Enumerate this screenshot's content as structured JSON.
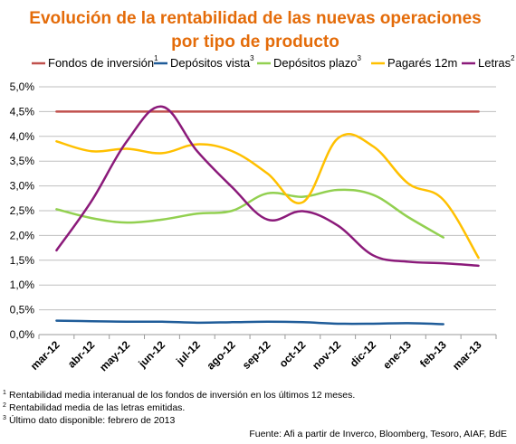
{
  "chart_data": {
    "type": "line",
    "title_line1": "Evolución de la rentabilidad de las nuevas operaciones",
    "title_line2": "por tipo de producto",
    "categories": [
      "mar-12",
      "abr-12",
      "may-12",
      "jun-12",
      "jul-12",
      "ago-12",
      "sep-12",
      "oct-12",
      "nov-12",
      "dic-12",
      "ene-13",
      "feb-13",
      "mar-13"
    ],
    "y_ticks": [
      "0,0%",
      "0,5%",
      "1,0%",
      "1,5%",
      "2,0%",
      "2,5%",
      "3,0%",
      "3,5%",
      "4,0%",
      "4,5%",
      "5,0%"
    ],
    "ylim": [
      0,
      5
    ],
    "grid": "horizontal",
    "legend_position": "top",
    "series": [
      {
        "name": "Fondos de inversión",
        "sup": "1",
        "color": "#C0504D",
        "values": [
          4.5,
          4.5,
          4.5,
          4.5,
          4.5,
          4.5,
          4.5,
          4.5,
          4.5,
          4.5,
          4.5,
          4.5,
          4.5
        ]
      },
      {
        "name": "Depósitos vista",
        "sup": "3",
        "color": "#1F5C99",
        "values": [
          0.28,
          0.27,
          0.26,
          0.26,
          0.24,
          0.25,
          0.26,
          0.25,
          0.22,
          0.22,
          0.23,
          0.21,
          null
        ]
      },
      {
        "name": "Depósitos plazo",
        "sup": "3",
        "color": "#92D050",
        "values": [
          2.53,
          2.35,
          2.26,
          2.32,
          2.44,
          2.5,
          2.85,
          2.78,
          2.92,
          2.82,
          2.37,
          1.96,
          null
        ]
      },
      {
        "name": "Pagarés 12m",
        "sup": "",
        "color": "#FFC000",
        "values": [
          3.9,
          3.7,
          3.75,
          3.66,
          3.84,
          3.7,
          3.25,
          2.67,
          3.96,
          3.8,
          3.05,
          2.72,
          1.55
        ]
      },
      {
        "name": "Letras",
        "sup": "2",
        "color": "#8B1A7A",
        "values": [
          1.7,
          2.7,
          3.9,
          4.6,
          3.7,
          2.97,
          2.32,
          2.49,
          2.2,
          1.6,
          1.47,
          1.44,
          1.39
        ]
      }
    ]
  },
  "footnotes": [
    {
      "sup": "1",
      "text": "Rentabilidad media interanual de los fondos de inversión en los últimos 12 meses."
    },
    {
      "sup": "2",
      "text": "Rentabilidad media de las letras emitidas."
    },
    {
      "sup": "3",
      "text": "Último dato disponible: febrero de 2013"
    }
  ],
  "source": "Fuente: Afi a partir de Inverco, Bloomberg, Tesoro, AIAF, BdE"
}
